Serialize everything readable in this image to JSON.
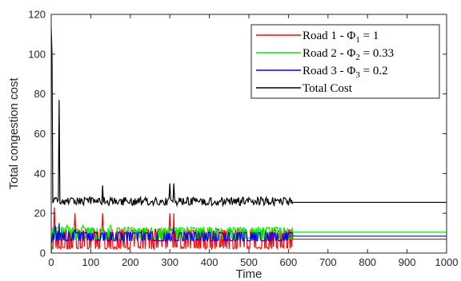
{
  "chart_data": {
    "type": "line",
    "xlabel": "Time",
    "ylabel": "Total congestion cost",
    "xlim": [
      0,
      1000
    ],
    "ylim": [
      0,
      120
    ],
    "xticks": [
      "0",
      "100",
      "200",
      "300",
      "400",
      "500",
      "600",
      "700",
      "800",
      "900",
      "1000"
    ],
    "yticks": [
      "0",
      "20",
      "40",
      "60",
      "80",
      "100",
      "120"
    ],
    "grid": false,
    "legend_position": "top-right",
    "sim_end": 610,
    "series": [
      {
        "name": "Road 1 - Φ₁ = 1",
        "legend": {
          "prefix": "Road 1 - Φ",
          "sub": "1",
          "suffix": " = 1"
        },
        "color": "#ff0000",
        "oscillation": {
          "low": 2,
          "high": 12
        },
        "steady_value": 7,
        "spikes": [
          {
            "x": 0,
            "y": 0
          },
          {
            "x": 8,
            "y": 23
          },
          {
            "x": 15,
            "y": 2
          },
          {
            "x": 60,
            "y": 20
          },
          {
            "x": 125,
            "y": 20
          },
          {
            "x": 130,
            "y": 20
          },
          {
            "x": 300,
            "y": 20
          },
          {
            "x": 310,
            "y": 20
          }
        ]
      },
      {
        "name": "Road 2 - Φ₂ = 0.33",
        "legend": {
          "prefix": "Road 2 - Φ",
          "sub": "2",
          "suffix": " = 0.33"
        },
        "color": "#00ee00",
        "oscillation": {
          "low": 7,
          "high": 13
        },
        "steady_value": 10.5,
        "spikes": [
          {
            "x": 0,
            "y": 0
          },
          {
            "x": 5,
            "y": 18
          },
          {
            "x": 40,
            "y": 14
          },
          {
            "x": 80,
            "y": 14
          },
          {
            "x": 150,
            "y": 14
          }
        ]
      },
      {
        "name": "Road 3 - Φ₃ = 0.2",
        "legend": {
          "prefix": "Road 3 - Φ",
          "sub": "3",
          "suffix": " = 0.2"
        },
        "color": "#0000ff",
        "oscillation": {
          "low": 6,
          "high": 10.5
        },
        "steady_value": 8.5,
        "spikes": [
          {
            "x": 0,
            "y": 5
          },
          {
            "x": 5,
            "y": 20
          },
          {
            "x": 10,
            "y": 14
          },
          {
            "x": 20,
            "y": 15
          },
          {
            "x": 60,
            "y": 12
          },
          {
            "x": 310,
            "y": 13
          }
        ]
      },
      {
        "name": "Total Cost",
        "legend": {
          "prefix": "Total Cost",
          "sub": "",
          "suffix": ""
        },
        "color": "#000000",
        "oscillation": {
          "low": 23,
          "high": 29
        },
        "steady_value": 25.5,
        "spikes": [
          {
            "x": 0,
            "y": 113
          },
          {
            "x": 2,
            "y": 100
          },
          {
            "x": 5,
            "y": 30
          },
          {
            "x": 20,
            "y": 77
          },
          {
            "x": 22,
            "y": 25
          },
          {
            "x": 125,
            "y": 34
          },
          {
            "x": 130,
            "y": 34
          },
          {
            "x": 300,
            "y": 35
          },
          {
            "x": 310,
            "y": 35
          }
        ]
      }
    ]
  }
}
